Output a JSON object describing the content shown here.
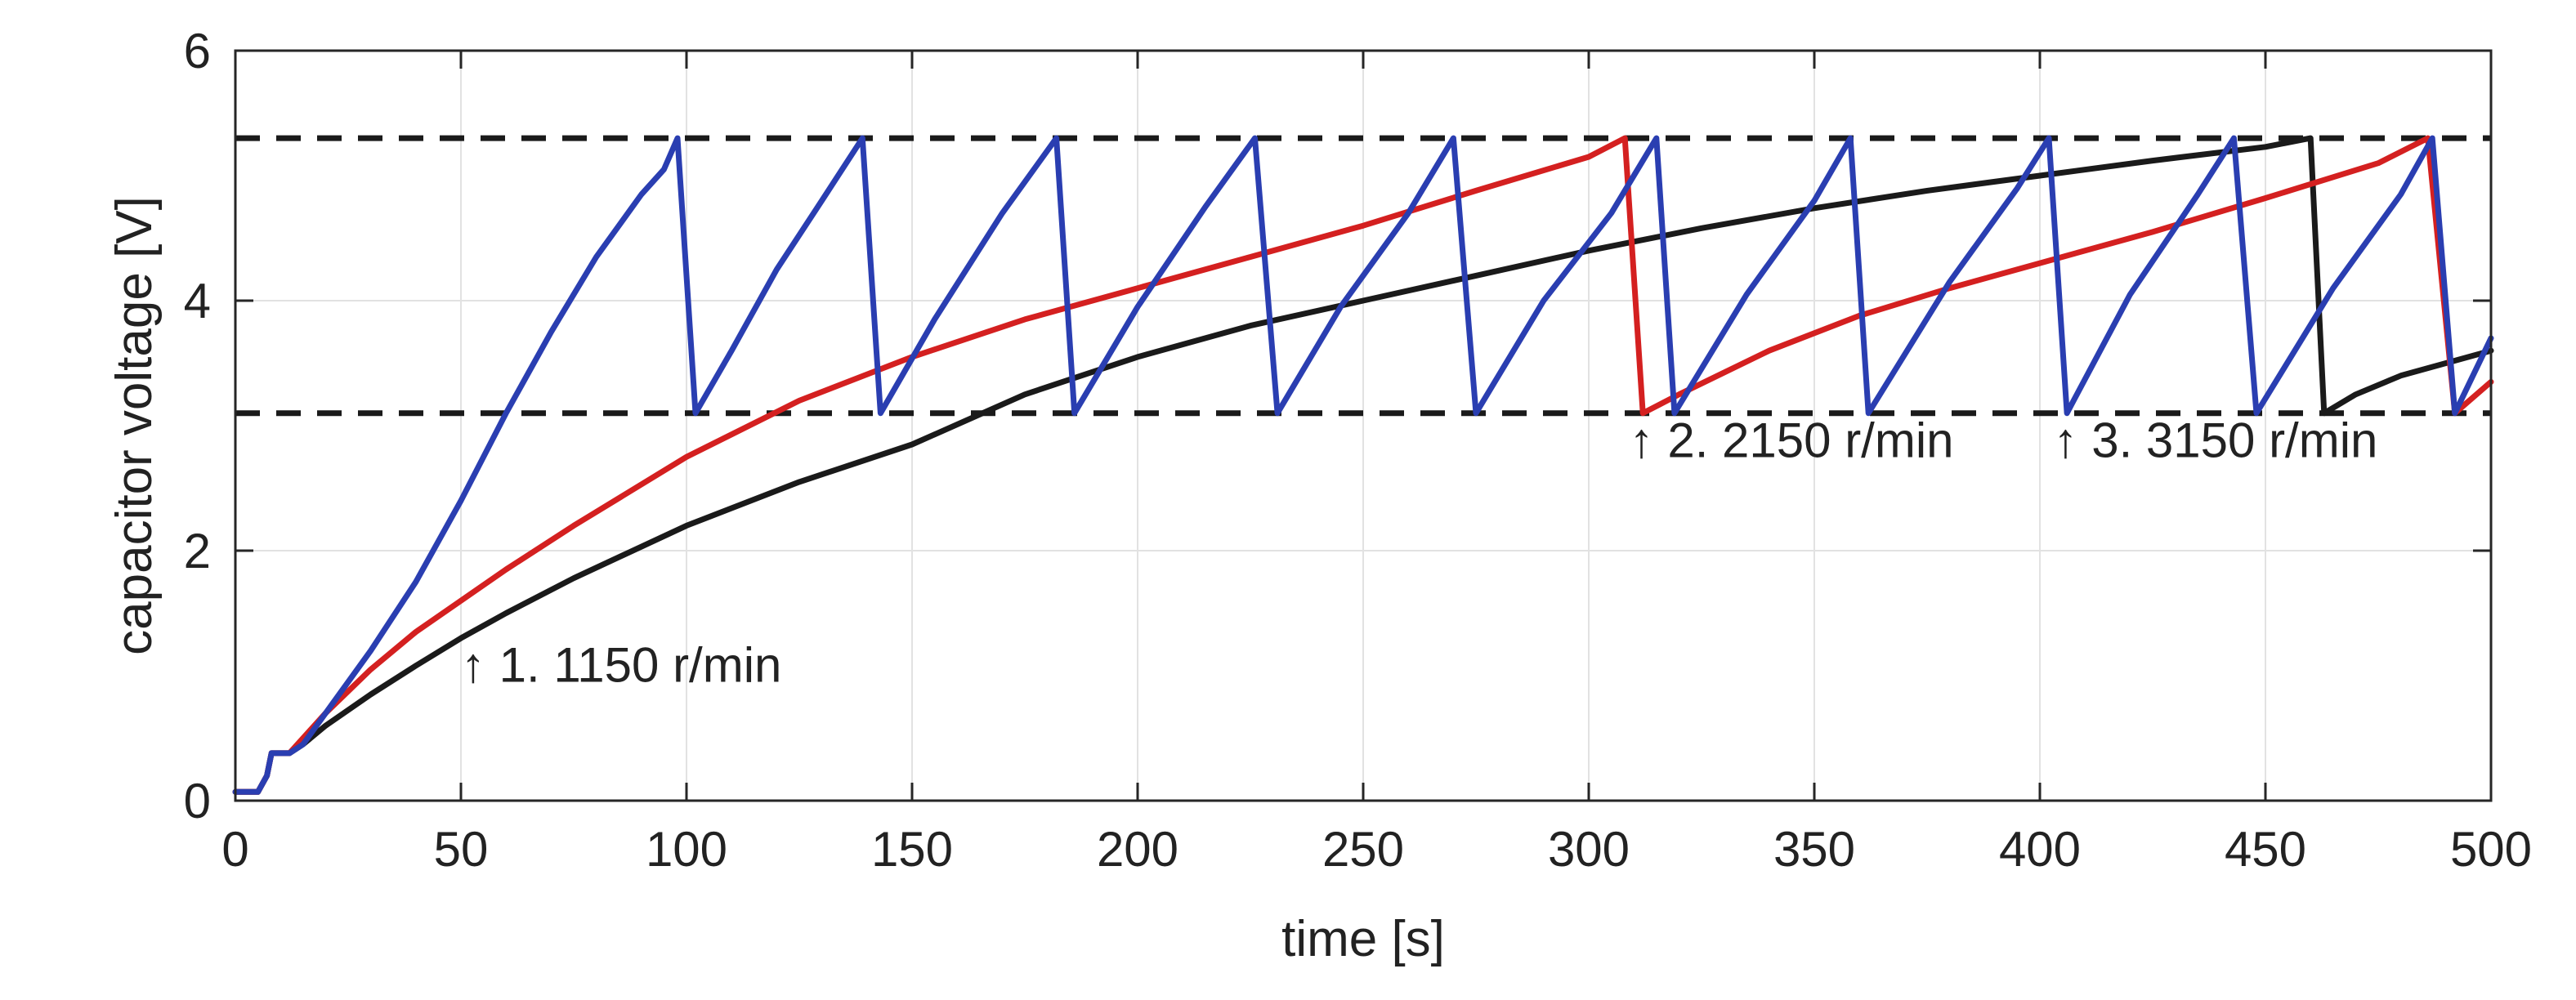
{
  "chart_data": {
    "type": "line",
    "title": "",
    "xlabel": "time [s]",
    "ylabel": "capacitor voltage [V]",
    "xlim": [
      0,
      500
    ],
    "ylim": [
      0,
      6
    ],
    "xticks": [
      0,
      50,
      100,
      150,
      200,
      250,
      300,
      350,
      400,
      450,
      500
    ],
    "yticks": [
      0,
      2,
      4,
      6
    ],
    "grid": true,
    "legend": "none",
    "thresholds": [
      {
        "name": "upper-threshold",
        "y": 5.3
      },
      {
        "name": "lower-threshold",
        "y": 3.1
      }
    ],
    "series": [
      {
        "name": "1150 r/min",
        "color": "#1a1a1a",
        "points": [
          [
            0,
            0.07
          ],
          [
            5,
            0.07
          ],
          [
            7,
            0.2
          ],
          [
            8,
            0.38
          ],
          [
            10,
            0.38
          ],
          [
            12,
            0.38
          ],
          [
            15,
            0.45
          ],
          [
            20,
            0.6
          ],
          [
            30,
            0.85
          ],
          [
            40,
            1.08
          ],
          [
            50,
            1.3
          ],
          [
            60,
            1.5
          ],
          [
            75,
            1.78
          ],
          [
            100,
            2.2
          ],
          [
            125,
            2.55
          ],
          [
            150,
            2.85
          ],
          [
            175,
            3.25
          ],
          [
            200,
            3.55
          ],
          [
            225,
            3.8
          ],
          [
            250,
            4.0
          ],
          [
            275,
            4.2
          ],
          [
            300,
            4.4
          ],
          [
            325,
            4.58
          ],
          [
            350,
            4.74
          ],
          [
            375,
            4.88
          ],
          [
            400,
            5.0
          ],
          [
            425,
            5.12
          ],
          [
            450,
            5.23
          ],
          [
            460,
            5.3
          ],
          [
            463,
            3.1
          ],
          [
            470,
            3.25
          ],
          [
            480,
            3.4
          ],
          [
            490,
            3.5
          ],
          [
            500,
            3.6
          ]
        ]
      },
      {
        "name": "2150 r/min",
        "color": "#d42020",
        "points": [
          [
            0,
            0.07
          ],
          [
            5,
            0.07
          ],
          [
            7,
            0.2
          ],
          [
            8,
            0.38
          ],
          [
            12,
            0.38
          ],
          [
            15,
            0.5
          ],
          [
            20,
            0.7
          ],
          [
            30,
            1.05
          ],
          [
            40,
            1.35
          ],
          [
            50,
            1.6
          ],
          [
            60,
            1.85
          ],
          [
            75,
            2.2
          ],
          [
            100,
            2.75
          ],
          [
            125,
            3.2
          ],
          [
            150,
            3.55
          ],
          [
            175,
            3.85
          ],
          [
            200,
            4.1
          ],
          [
            225,
            4.35
          ],
          [
            250,
            4.6
          ],
          [
            275,
            4.88
          ],
          [
            300,
            5.15
          ],
          [
            308,
            5.3
          ],
          [
            312,
            3.1
          ],
          [
            320,
            3.25
          ],
          [
            340,
            3.6
          ],
          [
            360,
            3.88
          ],
          [
            380,
            4.1
          ],
          [
            400,
            4.3
          ],
          [
            425,
            4.55
          ],
          [
            450,
            4.82
          ],
          [
            475,
            5.1
          ],
          [
            486,
            5.3
          ],
          [
            492,
            3.1
          ],
          [
            500,
            3.35
          ]
        ]
      },
      {
        "name": "3150 r/min",
        "color": "#2a3eb1",
        "points": [
          [
            0,
            0.07
          ],
          [
            5,
            0.07
          ],
          [
            7,
            0.2
          ],
          [
            8,
            0.38
          ],
          [
            12,
            0.38
          ],
          [
            15,
            0.45
          ],
          [
            20,
            0.7
          ],
          [
            30,
            1.2
          ],
          [
            40,
            1.75
          ],
          [
            50,
            2.4
          ],
          [
            60,
            3.1
          ],
          [
            70,
            3.75
          ],
          [
            80,
            4.35
          ],
          [
            90,
            4.85
          ],
          [
            95,
            5.05
          ],
          [
            98,
            5.3
          ],
          [
            102,
            3.1
          ],
          [
            110,
            3.6
          ],
          [
            120,
            4.25
          ],
          [
            130,
            4.8
          ],
          [
            139,
            5.3
          ],
          [
            143,
            3.1
          ],
          [
            155,
            3.85
          ],
          [
            170,
            4.7
          ],
          [
            182,
            5.3
          ],
          [
            186,
            3.1
          ],
          [
            200,
            3.95
          ],
          [
            215,
            4.75
          ],
          [
            226,
            5.3
          ],
          [
            231,
            3.1
          ],
          [
            245,
            3.95
          ],
          [
            260,
            4.7
          ],
          [
            270,
            5.3
          ],
          [
            275,
            3.1
          ],
          [
            290,
            4.0
          ],
          [
            305,
            4.7
          ],
          [
            315,
            5.3
          ],
          [
            319,
            3.1
          ],
          [
            335,
            4.05
          ],
          [
            350,
            4.8
          ],
          [
            358,
            5.3
          ],
          [
            362,
            3.1
          ],
          [
            380,
            4.15
          ],
          [
            395,
            4.9
          ],
          [
            402,
            5.3
          ],
          [
            406,
            3.1
          ],
          [
            420,
            4.05
          ],
          [
            435,
            4.85
          ],
          [
            443,
            5.3
          ],
          [
            448,
            3.1
          ],
          [
            465,
            4.1
          ],
          [
            480,
            4.85
          ],
          [
            487,
            5.3
          ],
          [
            492,
            3.1
          ],
          [
            500,
            3.7
          ]
        ]
      }
    ],
    "annotations": [
      {
        "name": "annotation-1150",
        "text": "↑ 1. 1150 r/min",
        "x": 50,
        "y": 0.95
      },
      {
        "name": "annotation-2150",
        "text": "↑ 2. 2150 r/min",
        "x": 309,
        "y": 2.75
      },
      {
        "name": "annotation-3150",
        "text": "↑ 3. 3150 r/min",
        "x": 403,
        "y": 2.75
      }
    ]
  }
}
